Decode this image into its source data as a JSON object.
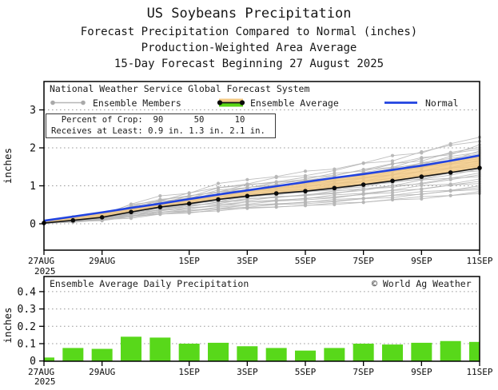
{
  "header": {
    "title": "US Soybeans Precipitation",
    "subtitle1": "Forecast Precipitation Compared to Normal (inches)",
    "subtitle2": "Production-Weighted Area Average",
    "subtitle3": "15-Day Forecast Beginning 27 August 2025"
  },
  "main_chart": {
    "legend": {
      "system_label": "National Weather Service Global Forecast System",
      "members_label": "Ensemble Members",
      "average_label": "Ensemble Average",
      "normal_label": "Normal"
    },
    "stats_box": {
      "line1": "  Percent of Crop:  90      50      10",
      "line2": "Receives at Least: 0.9 in. 1.3 in. 2.1 in."
    }
  },
  "bottom_chart": {
    "title": "Ensemble Average Daily Precipitation",
    "copyright": "© World Ag Weather"
  },
  "chart_data": [
    {
      "type": "line",
      "ylabel": "inches",
      "ylim": [
        -0.7,
        3.75
      ],
      "yticks": [
        0,
        1,
        2,
        3
      ],
      "ytick_labels": [
        "0",
        "1",
        "2",
        "3"
      ],
      "grid_values": [
        0,
        1,
        2,
        3
      ],
      "n_days": 16,
      "x_tick_days": [
        0,
        2,
        5,
        7,
        9,
        11,
        13,
        15
      ],
      "x_tick_labels": [
        "27AUG",
        "29AUG",
        "1SEP",
        "3SEP",
        "5SEP",
        "7SEP",
        "9SEP",
        "11SEP"
      ],
      "x_year_label": "2025",
      "legend_position": "top-left-inside",
      "grid": true,
      "series": [
        {
          "name": "Ensemble Average",
          "color": "#141414",
          "values": [
            0.02,
            0.09,
            0.17,
            0.31,
            0.44,
            0.53,
            0.64,
            0.73,
            0.8,
            0.86,
            0.94,
            1.03,
            1.13,
            1.24,
            1.35,
            1.47
          ]
        },
        {
          "name": "Normal",
          "color": "#2143e0",
          "values": [
            0.08,
            0.19,
            0.3,
            0.42,
            0.53,
            0.65,
            0.77,
            0.88,
            0.99,
            1.1,
            1.21,
            1.31,
            1.42,
            1.53,
            1.66,
            1.8
          ]
        }
      ],
      "band_fill": "#f4c983",
      "band_surplus_fill": "#5ad615",
      "members": {
        "name": "Ensemble Members",
        "color": "#b6b6b6",
        "count": 30,
        "final_values": [
          2.28,
          2.17,
          2.08,
          2.01,
          1.96,
          1.92,
          1.88,
          1.84,
          1.8,
          1.76,
          1.72,
          1.68,
          1.64,
          1.6,
          1.56,
          1.52,
          1.48,
          1.44,
          1.39,
          1.34,
          1.29,
          1.24,
          1.18,
          1.12,
          1.06,
          1.0,
          0.95,
          0.9,
          0.85,
          0.8
        ]
      }
    },
    {
      "type": "bar",
      "title": "Ensemble Average Daily Precipitation",
      "ylabel": "inches",
      "ylim": [
        0,
        0.49
      ],
      "yticks": [
        0,
        0.1,
        0.2,
        0.3,
        0.4
      ],
      "ytick_labels": [
        "0",
        "0.1",
        "0.2",
        "0.3",
        "0.4"
      ],
      "grid_values": [
        0.1,
        0.2,
        0.3,
        0.4
      ],
      "n_days": 16,
      "x_tick_days": [
        0,
        2,
        5,
        7,
        9,
        11,
        13,
        15
      ],
      "x_tick_labels": [
        "27AUG",
        "29AUG",
        "1SEP",
        "3SEP",
        "5SEP",
        "7SEP",
        "9SEP",
        "11SEP"
      ],
      "x_year_label": "2025",
      "grid": true,
      "bar_color": "#58d81a",
      "values": [
        0.02,
        0.075,
        0.07,
        0.14,
        0.135,
        0.1,
        0.105,
        0.085,
        0.075,
        0.06,
        0.075,
        0.1,
        0.095,
        0.105,
        0.115,
        0.11
      ]
    }
  ]
}
